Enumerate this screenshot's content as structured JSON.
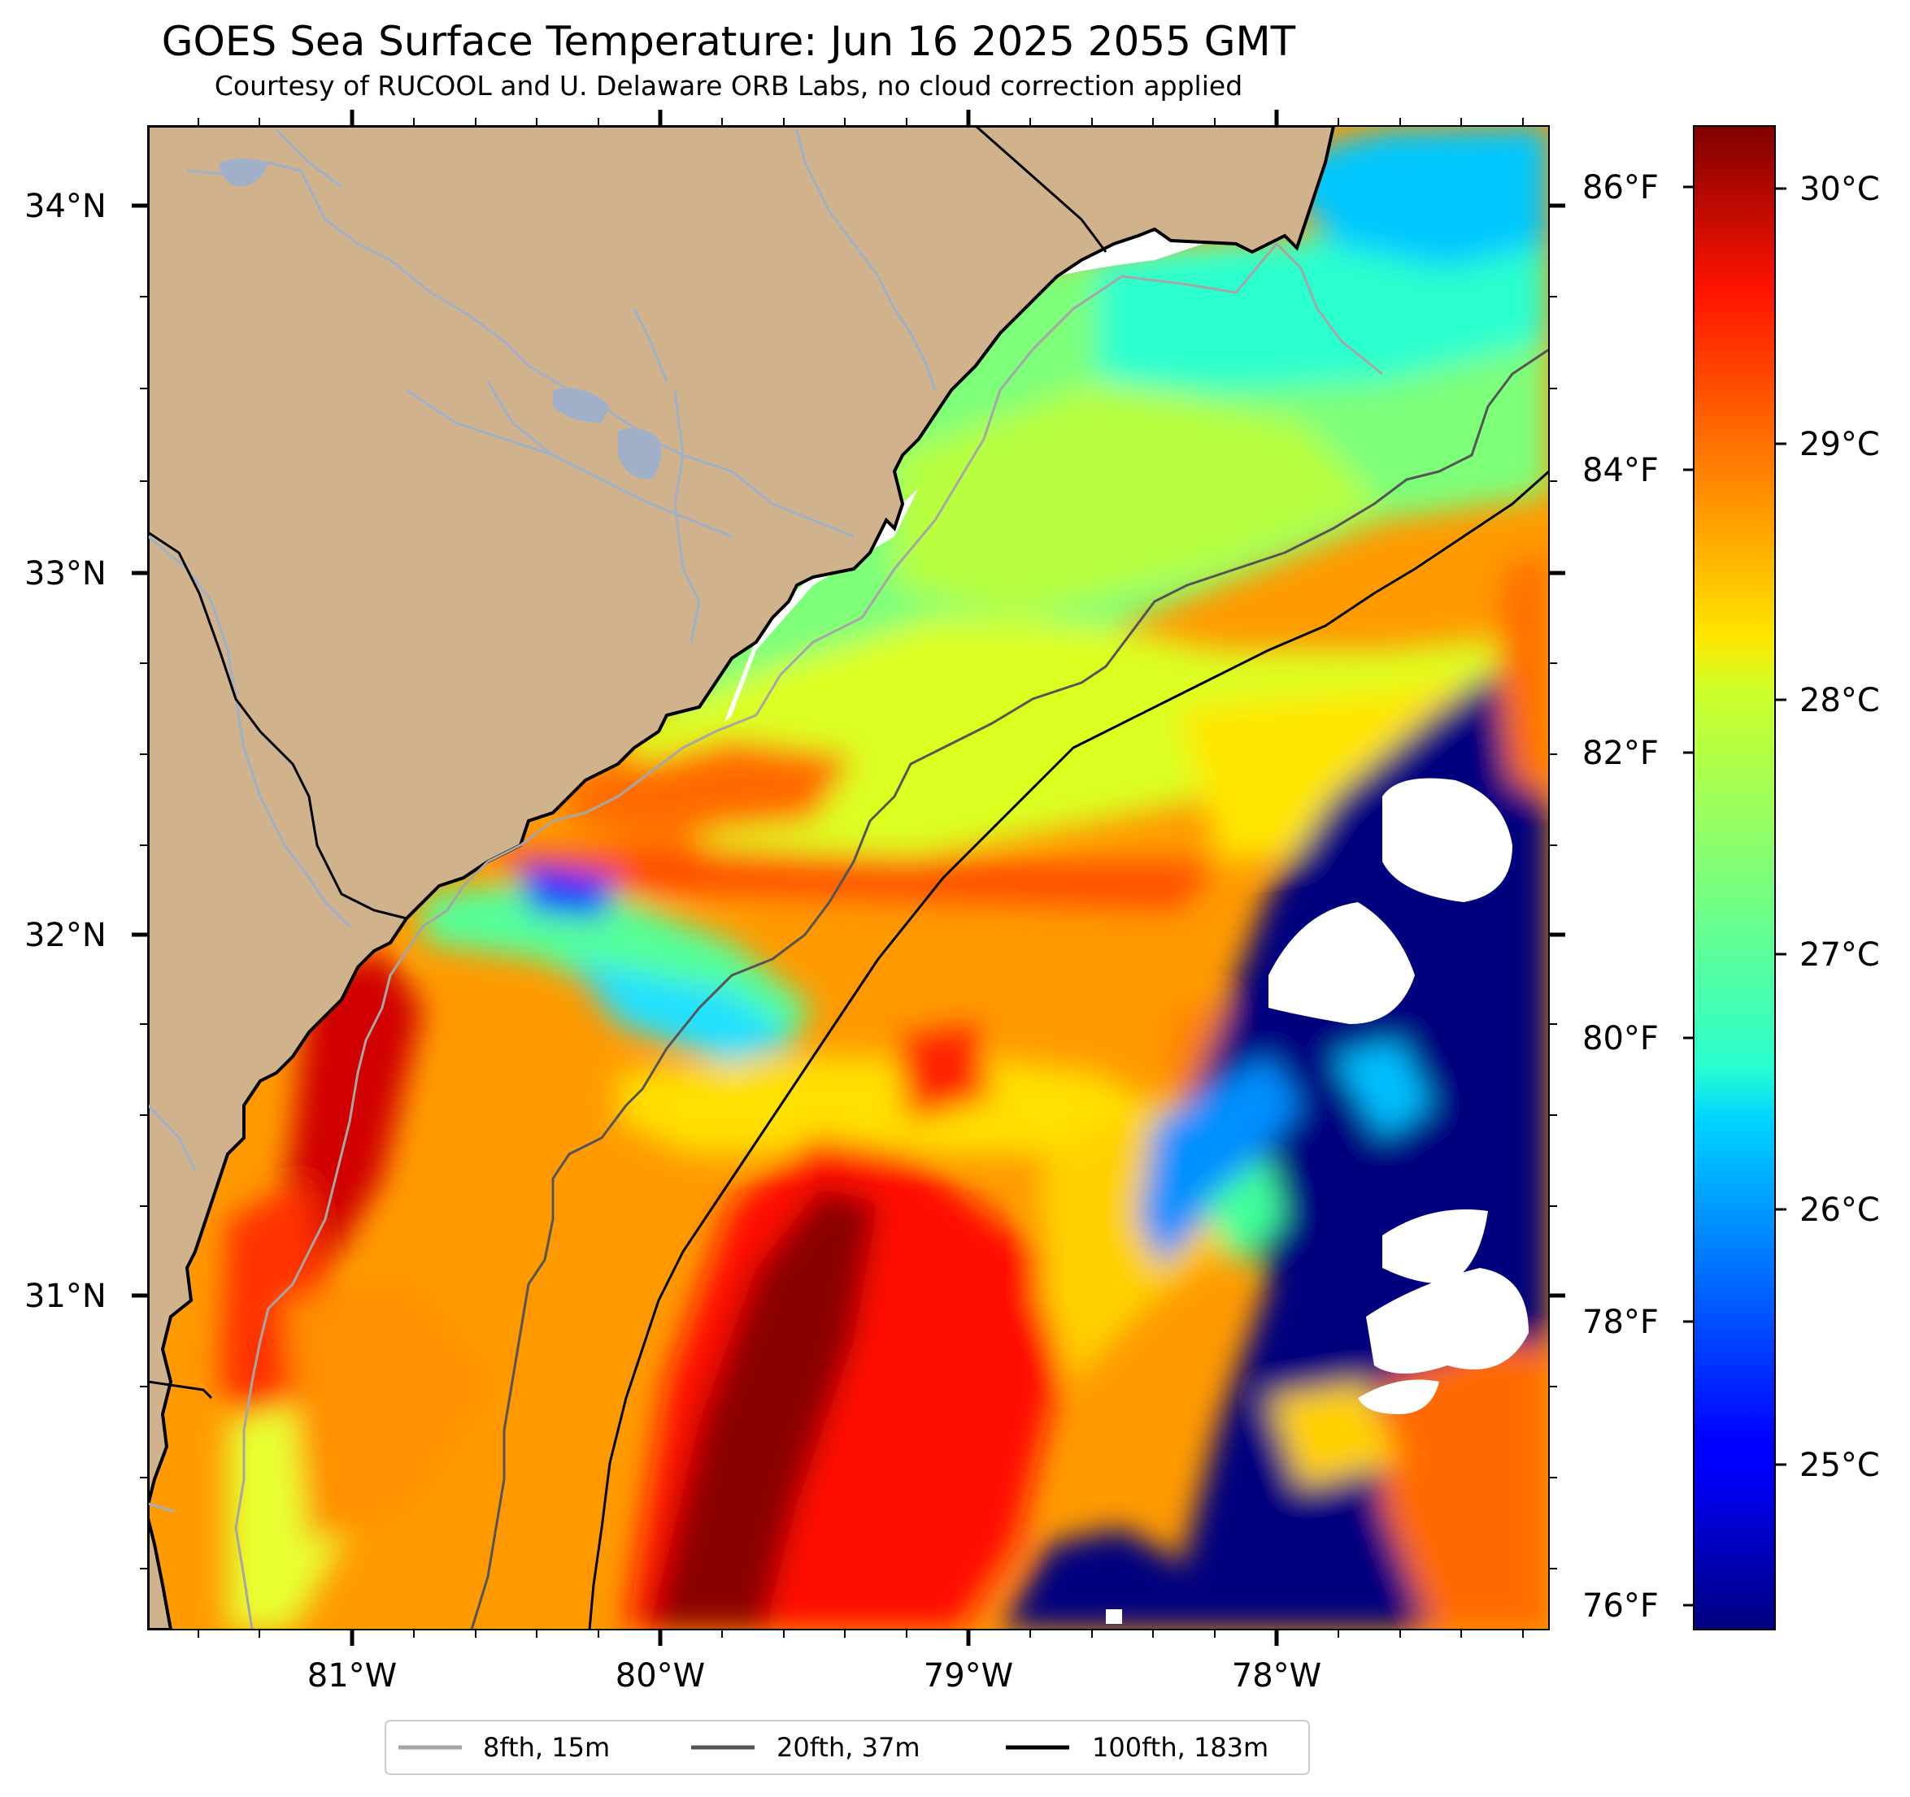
{
  "title": "GOES Sea Surface Temperature: Jun 16 2025 2055 GMT",
  "subtitle": "Courtesy of RUCOOL and U. Delaware ORB Labs, no cloud correction applied",
  "map": {
    "lon_range": [
      -81.67,
      -77.1
    ],
    "lat_range": [
      30.1,
      34.23
    ],
    "lat_labels": [
      "34°N",
      "33°N",
      "32°N",
      "31°N"
    ],
    "lon_labels": [
      "81°W",
      "80°W",
      "79°W",
      "78°W"
    ],
    "fahrenheit_labels": [
      "86°F",
      "84°F",
      "82°F",
      "80°F",
      "78°F",
      "76°F"
    ],
    "land_color": "#d0b38c",
    "cloud_color": "#ffffff",
    "river_color": "#9fb0c8"
  },
  "colorbar": {
    "colormap": "jet",
    "range_c": [
      24.2,
      30.2
    ],
    "labels": [
      "30°C",
      "29°C",
      "28°C",
      "27°C",
      "26°C",
      "25°C"
    ]
  },
  "legend": [
    {
      "label": "8fth, 15m",
      "color": "#a6a6a6"
    },
    {
      "label": "20fth, 37m",
      "color": "#555555"
    },
    {
      "label": "100fth, 183m",
      "color": "#000000"
    }
  ]
}
